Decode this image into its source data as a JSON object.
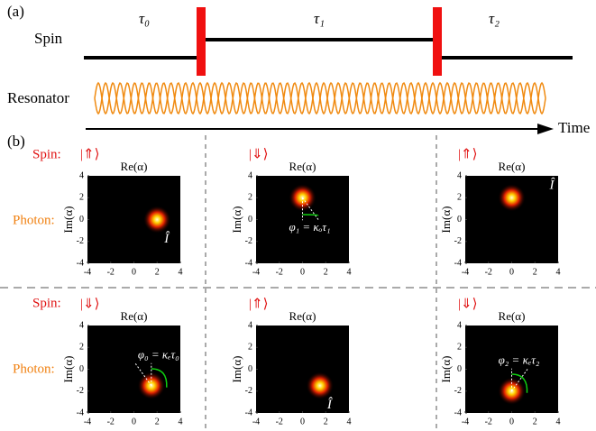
{
  "part_a": {
    "label": "(a)",
    "spin": "Spin",
    "resonator": "Resonator",
    "time": "Time",
    "durations": [
      "τ₀",
      "τ₁",
      "τ₂"
    ]
  },
  "part_b": {
    "label": "(b)",
    "rows": [
      {
        "spin_label": "Spin:",
        "photon_label": "Photon:"
      },
      {
        "spin_label": "Spin:",
        "photon_label": "Photon:"
      }
    ],
    "panels": [
      {
        "ket": "|⇑⟩",
        "x_label": "Re(α)",
        "y_label": "Im(α)",
        "xlim": [
          -4,
          4
        ],
        "ylim": [
          -4,
          4
        ],
        "xticks": [
          -4,
          -2,
          0,
          2,
          4
        ],
        "yticks": [
          -4,
          -2,
          0,
          2,
          4
        ],
        "spot": [
          2,
          0
        ],
        "annotation": "Î"
      },
      {
        "ket": "|⇓⟩",
        "x_label": "Re(α)",
        "y_label": "Im(α)",
        "xlim": [
          -4,
          4
        ],
        "ylim": [
          -4,
          4
        ],
        "xticks": [
          -4,
          -2,
          0,
          2,
          4
        ],
        "yticks": [
          -4,
          -2,
          0,
          2,
          4
        ],
        "spot": [
          0,
          2
        ],
        "annotation": "φ₁ = κₒτ₁"
      },
      {
        "ket": "|⇑⟩",
        "x_label": "Re(α)",
        "y_label": "Im(α)",
        "xlim": [
          -4,
          4
        ],
        "ylim": [
          -4,
          4
        ],
        "xticks": [
          -4,
          -2,
          0,
          2,
          4
        ],
        "yticks": [
          -4,
          -2,
          0,
          2,
          4
        ],
        "spot": [
          0,
          2
        ],
        "annotation": "Î"
      },
      {
        "ket": "|⇓⟩",
        "x_label": "Re(α)",
        "y_label": "Im(α)",
        "xlim": [
          -4,
          4
        ],
        "ylim": [
          -4,
          4
        ],
        "xticks": [
          -4,
          -2,
          0,
          2,
          4
        ],
        "yticks": [
          -4,
          -2,
          0,
          2,
          4
        ],
        "spot": [
          1.5,
          -1.5
        ],
        "annotation": "φ₀ = κₑτ₀"
      },
      {
        "ket": "|⇑⟩",
        "x_label": "Re(α)",
        "y_label": "Im(α)",
        "xlim": [
          -4,
          4
        ],
        "ylim": [
          -4,
          4
        ],
        "xticks": [
          -4,
          -2,
          0,
          2,
          4
        ],
        "yticks": [
          -4,
          -2,
          0,
          2,
          4
        ],
        "spot": [
          1.5,
          -1.5
        ],
        "annotation": "Î"
      },
      {
        "ket": "|⇓⟩",
        "x_label": "Re(α)",
        "y_label": "Im(α)",
        "xlim": [
          -4,
          4
        ],
        "ylim": [
          -4,
          4
        ],
        "xticks": [
          -4,
          -2,
          0,
          2,
          4
        ],
        "yticks": [
          -4,
          -2,
          0,
          2,
          4
        ],
        "spot": [
          0,
          -2
        ],
        "annotation": "φ₂ = κₑτ₂"
      }
    ]
  }
}
